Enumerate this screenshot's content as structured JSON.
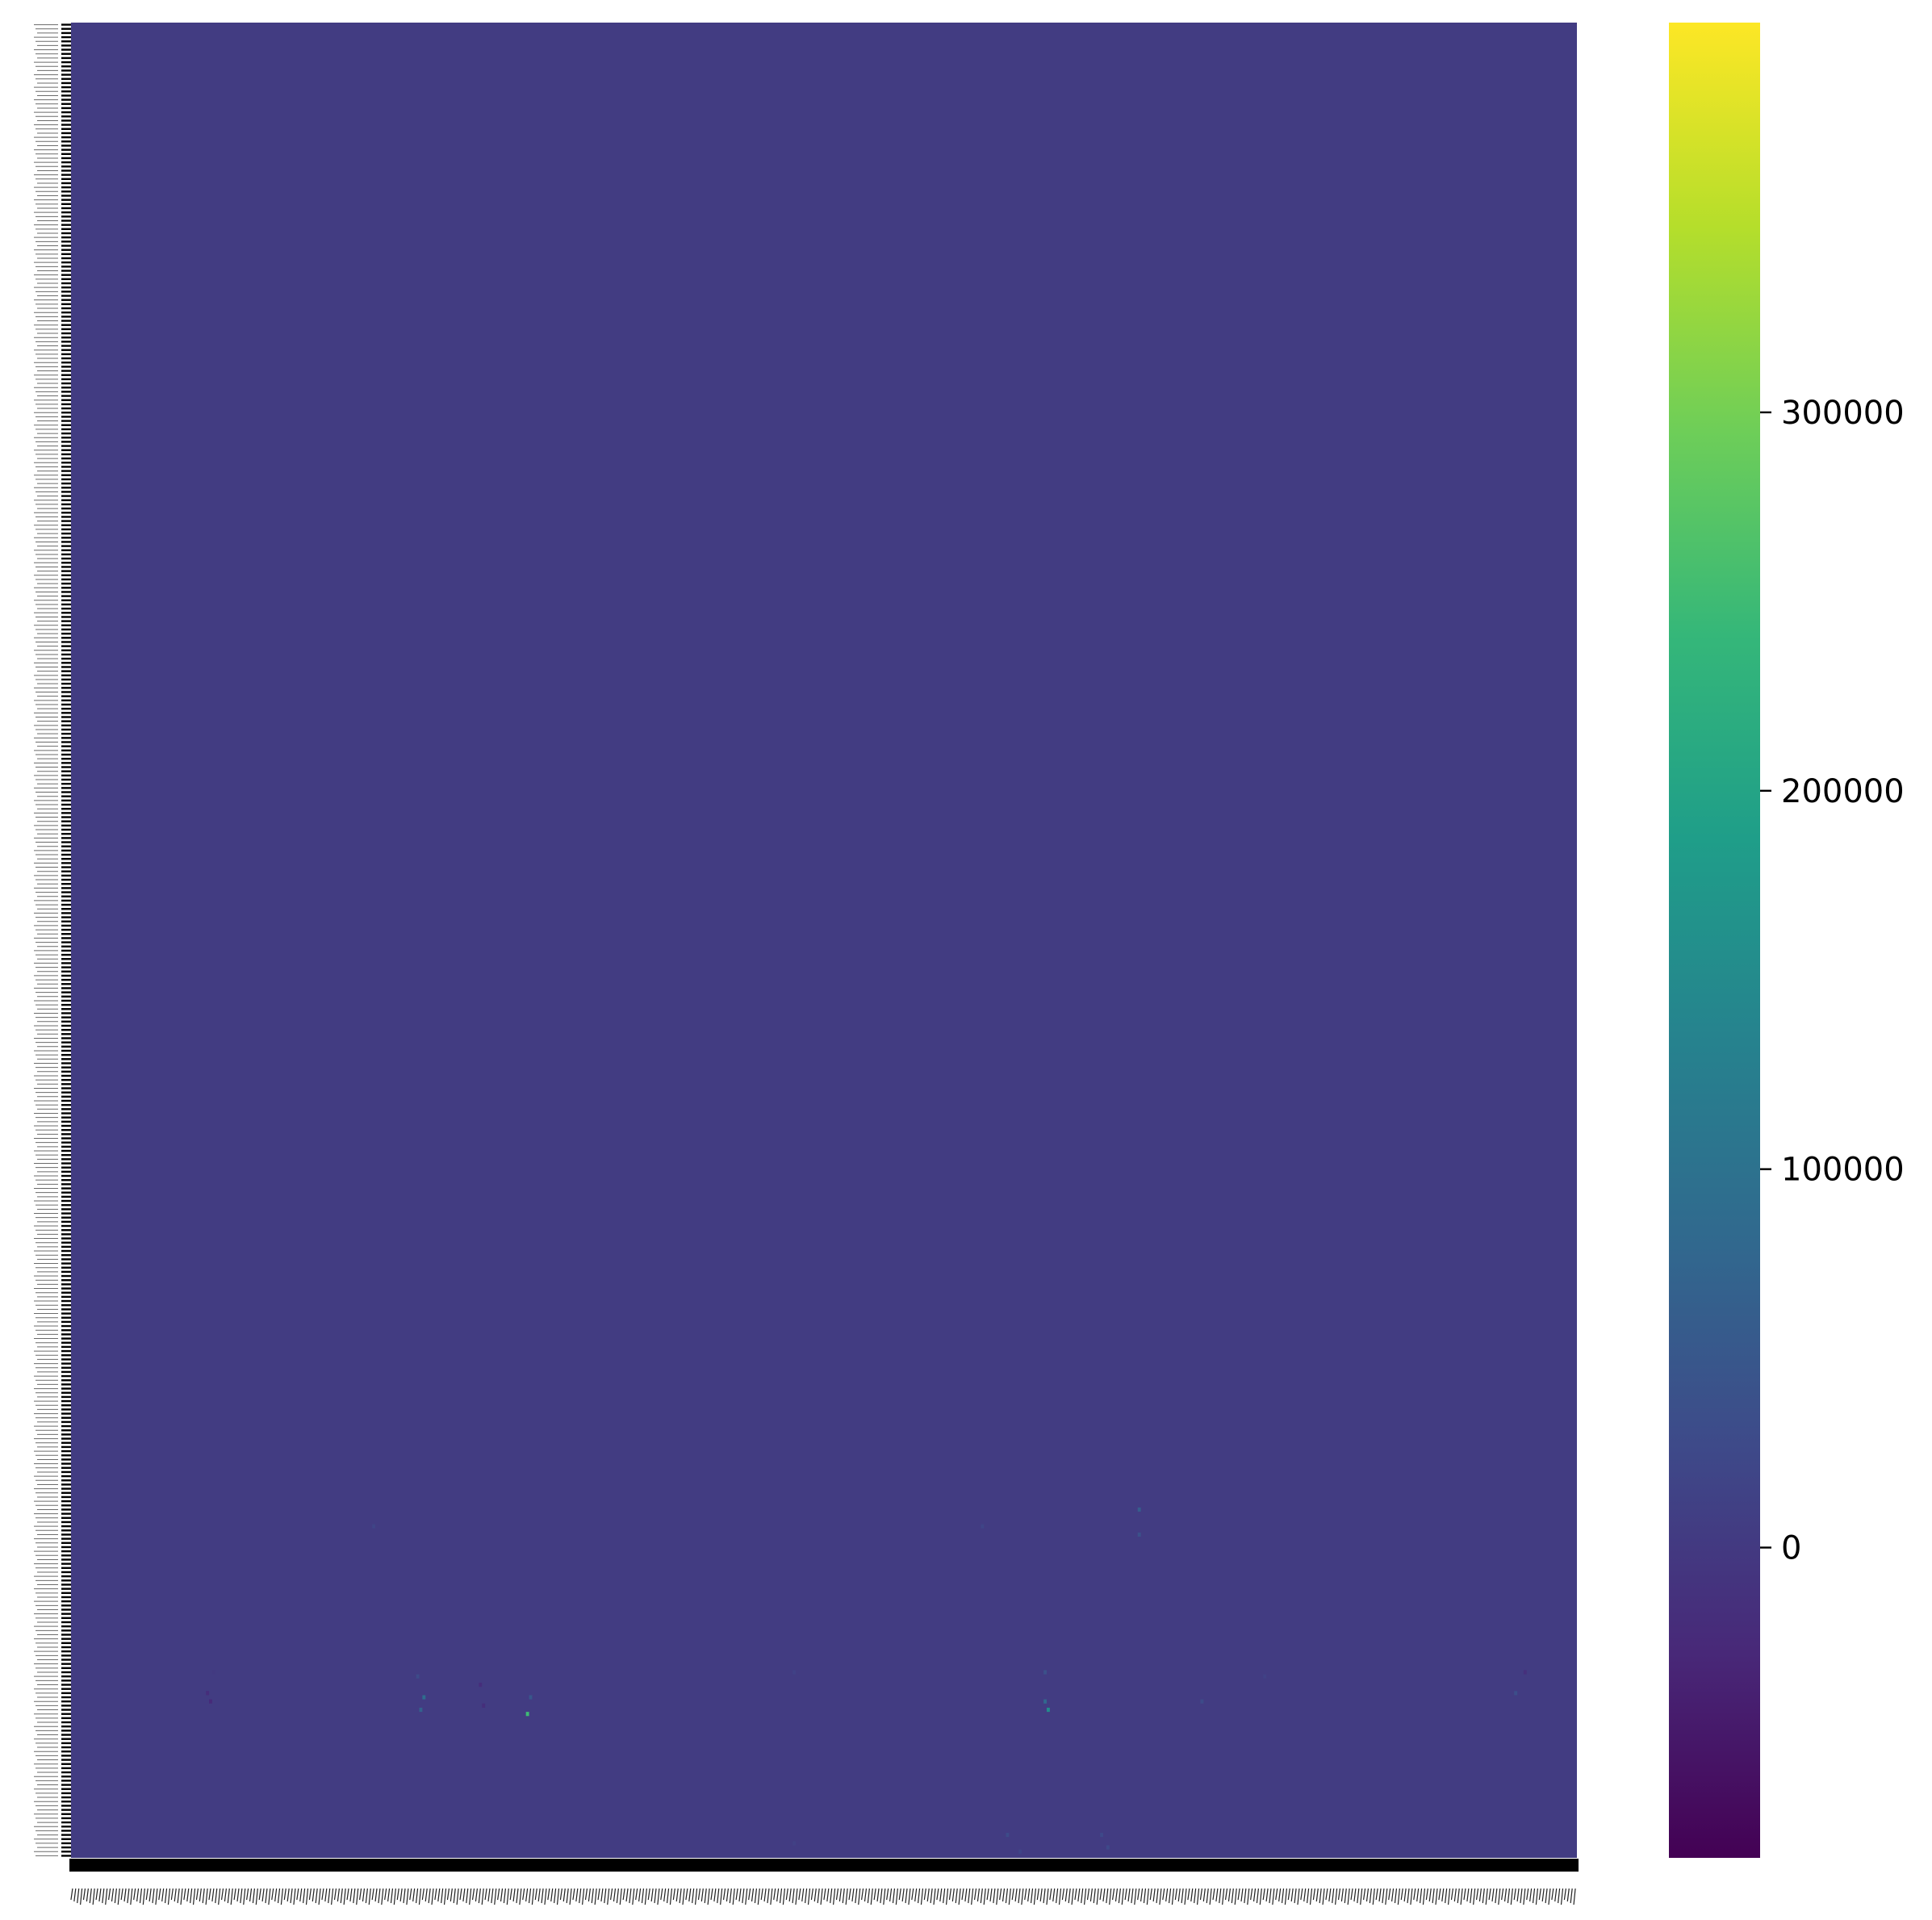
{
  "chart_data": {
    "type": "heatmap",
    "title": "",
    "xlabel": "",
    "ylabel": "",
    "colormap": "viridis",
    "colormap_stops": [
      "#440154",
      "#482878",
      "#3e4989",
      "#31688e",
      "#26828e",
      "#1f9e89",
      "#35b779",
      "#6ece58",
      "#b5de2b",
      "#fde725"
    ],
    "value_range": [
      -82000,
      403000
    ],
    "background_value": 5000,
    "colorbar": {
      "ticks": [
        {
          "value": 0,
          "label": "0"
        },
        {
          "value": 100000,
          "label": "100000"
        },
        {
          "value": 200000,
          "label": "200000"
        },
        {
          "value": 300000,
          "label": "300000"
        }
      ]
    },
    "n_rows": 440,
    "n_cols": 480,
    "y_tick_count": 440,
    "x_tick_count": 480,
    "tick_labels_legible": false,
    "notable_cells": [
      {
        "row": 395,
        "col": 45,
        "value": 2000
      },
      {
        "row": 400,
        "col": 43,
        "value": -20000
      },
      {
        "row": 402,
        "col": 44,
        "value": -25000
      },
      {
        "row": 396,
        "col": 110,
        "value": 30000
      },
      {
        "row": 401,
        "col": 112,
        "value": 90000
      },
      {
        "row": 404,
        "col": 111,
        "value": 70000
      },
      {
        "row": 398,
        "col": 130,
        "value": -20000
      },
      {
        "row": 403,
        "col": 131,
        "value": -18000
      },
      {
        "row": 405,
        "col": 145,
        "value": 250000
      },
      {
        "row": 401,
        "col": 146,
        "value": 50000
      },
      {
        "row": 360,
        "col": 96,
        "value": 20000
      },
      {
        "row": 395,
        "col": 230,
        "value": 15000
      },
      {
        "row": 360,
        "col": 290,
        "value": 20000
      },
      {
        "row": 356,
        "col": 340,
        "value": 60000
      },
      {
        "row": 362,
        "col": 340,
        "value": 40000
      },
      {
        "row": 395,
        "col": 310,
        "value": 40000
      },
      {
        "row": 402,
        "col": 310,
        "value": 80000
      },
      {
        "row": 404,
        "col": 311,
        "value": 150000
      },
      {
        "row": 402,
        "col": 360,
        "value": 30000
      },
      {
        "row": 400,
        "col": 460,
        "value": 35000
      },
      {
        "row": 395,
        "col": 463,
        "value": -15000
      },
      {
        "row": 396,
        "col": 380,
        "value": 15000
      },
      {
        "row": 434,
        "col": 298,
        "value": 30000
      },
      {
        "row": 438,
        "col": 302,
        "value": 20000
      },
      {
        "row": 434,
        "col": 328,
        "value": 25000
      },
      {
        "row": 437,
        "col": 330,
        "value": 25000
      },
      {
        "row": 436,
        "col": 230,
        "value": 12000
      }
    ]
  }
}
